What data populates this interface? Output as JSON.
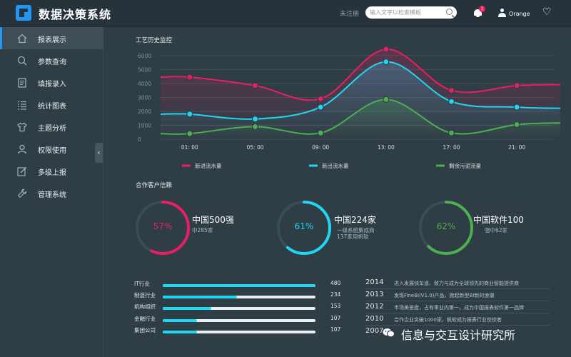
{
  "header": {
    "app_title": "数据决策系统",
    "register": "未注册",
    "search_placeholder": "输入文字以检索模板",
    "notification_count": "1",
    "username": "Orange"
  },
  "sidebar": {
    "items": [
      {
        "label": "报表展示",
        "icon": "home-icon",
        "active": true
      },
      {
        "label": "参数查询",
        "icon": "search-icon"
      },
      {
        "label": "填报录入",
        "icon": "form-icon"
      },
      {
        "label": "统计图表",
        "icon": "list-icon"
      },
      {
        "label": "主题分析",
        "icon": "shirt-icon"
      },
      {
        "label": "权限使用",
        "icon": "user-icon"
      },
      {
        "label": "多级上报",
        "icon": "edit-icon"
      },
      {
        "label": "管理系统",
        "icon": "wrench-icon"
      }
    ]
  },
  "chart_section": {
    "title": "工艺历史监控"
  },
  "chart_data": {
    "type": "line",
    "x": [
      "01: 00",
      "05: 00",
      "09: 00",
      "13: 00",
      "17: 00",
      "21: 00"
    ],
    "yticks": [
      0,
      1000,
      2000,
      3000,
      4000,
      5000,
      6000
    ],
    "ylim": [
      0,
      6500
    ],
    "grid": true,
    "legend_position": "bottom",
    "series": [
      {
        "name": "新进流水量",
        "color": "#e91e63",
        "values": [
          4450,
          3850,
          2900,
          6450,
          3500,
          3850
        ]
      },
      {
        "name": "新出流水量",
        "color": "#1fd7f2",
        "values": [
          1800,
          1450,
          2300,
          5550,
          2700,
          2300
        ]
      },
      {
        "name": "剩余污泥流量",
        "color": "#4caf50",
        "values": [
          400,
          900,
          450,
          2850,
          450,
          1050
        ]
      }
    ]
  },
  "partners": {
    "title": "合作客户信赖",
    "gauges": [
      {
        "percent": 57,
        "pct_label": "57%",
        "color": "#e91e63",
        "title": "中国500强",
        "sub1": "中285家",
        "sub2": ""
      },
      {
        "percent": 61,
        "pct_label": "61%",
        "color": "#1fd7f2",
        "title": "中国224家",
        "sub1": "一级系统集成商",
        "sub2": "137家用帆软"
      },
      {
        "percent": 62,
        "pct_label": "62%",
        "color": "#4caf50",
        "title": "中国软件100",
        "sub1": "强中62家",
        "sub2": ""
      }
    ]
  },
  "industries": [
    {
      "label": "IT行业",
      "value": 480,
      "value_label": "480"
    },
    {
      "label": "制造行业",
      "value": 234,
      "value_label": "234"
    },
    {
      "label": "机构组织",
      "value": 153,
      "value_label": "153"
    },
    {
      "label": "金融行业",
      "value": 107,
      "value_label": "107"
    },
    {
      "label": "集团公司",
      "value": 107,
      "value_label": "107"
    }
  ],
  "industry_max": 480,
  "timeline": [
    {
      "year": "2014",
      "text": "进入发展快车道、致力与成为全球领先的商业智能提供商"
    },
    {
      "year": "2013",
      "text": "发现FineBI(V1.0)产品，掀起新型BI新的浪潮"
    },
    {
      "year": "2012",
      "text": "市场美誉度，占有率业内第一，成为中国报表软件第一品牌"
    },
    {
      "year": "2010",
      "text": "合作企业突破1000家，帆软成为报表行业佼佼者"
    },
    {
      "year": "2007",
      "text": ""
    }
  ],
  "watermark": "信息与交互设计研究所"
}
